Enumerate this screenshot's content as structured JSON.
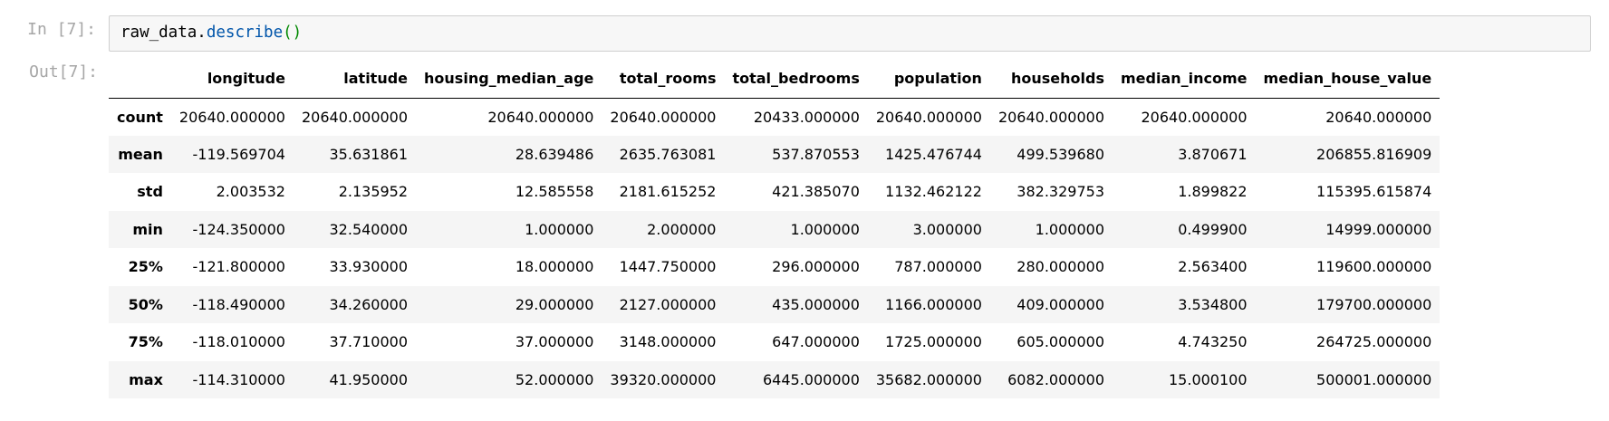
{
  "notebook": {
    "in_prompt": "In [7]:",
    "out_prompt": "Out[7]:",
    "code": {
      "variable": "raw_data",
      "dot": ".",
      "method": "describe",
      "parens": "()"
    }
  },
  "table": {
    "columns": [
      "longitude",
      "latitude",
      "housing_median_age",
      "total_rooms",
      "total_bedrooms",
      "population",
      "households",
      "median_income",
      "median_house_value"
    ],
    "rows": [
      {
        "label": "count",
        "values": [
          "20640.000000",
          "20640.000000",
          "20640.000000",
          "20640.000000",
          "20433.000000",
          "20640.000000",
          "20640.000000",
          "20640.000000",
          "20640.000000"
        ]
      },
      {
        "label": "mean",
        "values": [
          "-119.569704",
          "35.631861",
          "28.639486",
          "2635.763081",
          "537.870553",
          "1425.476744",
          "499.539680",
          "3.870671",
          "206855.816909"
        ]
      },
      {
        "label": "std",
        "values": [
          "2.003532",
          "2.135952",
          "12.585558",
          "2181.615252",
          "421.385070",
          "1132.462122",
          "382.329753",
          "1.899822",
          "115395.615874"
        ]
      },
      {
        "label": "min",
        "values": [
          "-124.350000",
          "32.540000",
          "1.000000",
          "2.000000",
          "1.000000",
          "3.000000",
          "1.000000",
          "0.499900",
          "14999.000000"
        ]
      },
      {
        "label": "25%",
        "values": [
          "-121.800000",
          "33.930000",
          "18.000000",
          "1447.750000",
          "296.000000",
          "787.000000",
          "280.000000",
          "2.563400",
          "119600.000000"
        ]
      },
      {
        "label": "50%",
        "values": [
          "-118.490000",
          "34.260000",
          "29.000000",
          "2127.000000",
          "435.000000",
          "1166.000000",
          "409.000000",
          "3.534800",
          "179700.000000"
        ]
      },
      {
        "label": "75%",
        "values": [
          "-118.010000",
          "37.710000",
          "37.000000",
          "3148.000000",
          "647.000000",
          "1725.000000",
          "605.000000",
          "4.743250",
          "264725.000000"
        ]
      },
      {
        "label": "max",
        "values": [
          "-114.310000",
          "41.950000",
          "52.000000",
          "39320.000000",
          "6445.000000",
          "35682.000000",
          "6082.000000",
          "15.000100",
          "500001.000000"
        ]
      }
    ]
  }
}
